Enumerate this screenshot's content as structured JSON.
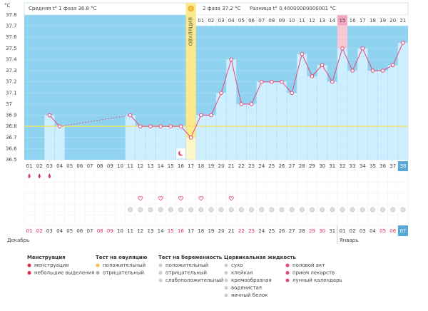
{
  "header": {
    "phase1": "Средняя t° 1 фаза 36.8 °C",
    "phase2": "2 фаза 37.2 °C",
    "difference": "Разница t° 0.40000000000001 °C"
  },
  "chart_data": {
    "type": "line",
    "y_unit": "°C",
    "ovulation_label": "ОВУЛЯЦИЯ",
    "ovulation_index": 16,
    "color": "#e8457a",
    "cover_line": 36.8,
    "ylim": [
      36.5,
      37.8
    ],
    "yticks": [
      36.5,
      36.6,
      36.7,
      36.8,
      36.9,
      37,
      37.1,
      37.2,
      37.3,
      37.4,
      37.5,
      37.6,
      37.7,
      37.8
    ],
    "categories": [
      "01",
      "02",
      "03",
      "04",
      "05",
      "06",
      "07",
      "08",
      "09",
      "10",
      "11",
      "12",
      "13",
      "14",
      "15",
      "16",
      "17",
      "18",
      "19",
      "20",
      "21",
      "22",
      "23",
      "24",
      "25",
      "26",
      "27",
      "28",
      "29",
      "30",
      "31",
      "32",
      "33",
      "34",
      "35",
      "36",
      "37",
      "38"
    ],
    "values": [
      null,
      null,
      36.9,
      36.8,
      null,
      null,
      null,
      null,
      null,
      null,
      36.9,
      36.8,
      36.8,
      36.8,
      36.8,
      36.8,
      36.7,
      36.9,
      36.9,
      37.1,
      37.4,
      37.0,
      37.0,
      37.2,
      37.2,
      37.2,
      37.1,
      37.45,
      37.25,
      37.35,
      37.2,
      37.5,
      37.3,
      37.5,
      37.3,
      37.3,
      37.35,
      37.55
    ],
    "phase2_days": [
      "01",
      "02",
      "03",
      "04",
      "05",
      "06",
      "07",
      "08",
      "09",
      "10",
      "11",
      "12",
      "13",
      "14",
      "15",
      "16",
      "17",
      "18",
      "19",
      "20",
      "21"
    ],
    "phase2_highlight_index": 14,
    "dates": [
      "01",
      "02",
      "03",
      "04",
      "05",
      "06",
      "07",
      "08",
      "09",
      "10",
      "11",
      "12",
      "13",
      "14",
      "15",
      "16",
      "17",
      "18",
      "19",
      "20",
      "21",
      "22",
      "23",
      "24",
      "25",
      "26",
      "27",
      "28",
      "29",
      "30",
      "31",
      "01",
      "02",
      "03",
      "04",
      "05",
      "06",
      "07"
    ],
    "red_date_indices": [
      0,
      1,
      7,
      8,
      14,
      15,
      21,
      22,
      28,
      29,
      35,
      36
    ],
    "months": [
      "Декабрь",
      "Январь"
    ],
    "menstruation_days": [
      0,
      1,
      2
    ],
    "intercourse_days": [
      11,
      13,
      15,
      17,
      20
    ],
    "pregnancy_test_days": [
      10,
      11,
      12,
      13,
      14,
      15,
      16,
      17,
      18,
      19,
      20,
      21,
      22,
      23,
      24,
      25,
      26,
      27,
      28,
      29,
      30,
      31,
      32,
      33,
      34,
      35,
      36,
      37
    ]
  },
  "legend": [
    {
      "title": "Менструация",
      "items": [
        "менструация",
        "небольшие выделения"
      ]
    },
    {
      "title": "Тест на овуляцию",
      "items": [
        "положительный",
        "отрицательный"
      ]
    },
    {
      "title": "Тест на беременность",
      "items": [
        "положительный",
        "отрицательный",
        "слабоположительный"
      ]
    },
    {
      "title": "Цервикальная жидкость",
      "items": [
        "сухо",
        "клейкая",
        "кремообразная",
        "водянистая",
        "яичный белок"
      ]
    },
    {
      "title": "",
      "items": [
        "половой акт",
        "прием лекарств",
        "лунный календарь"
      ]
    }
  ]
}
